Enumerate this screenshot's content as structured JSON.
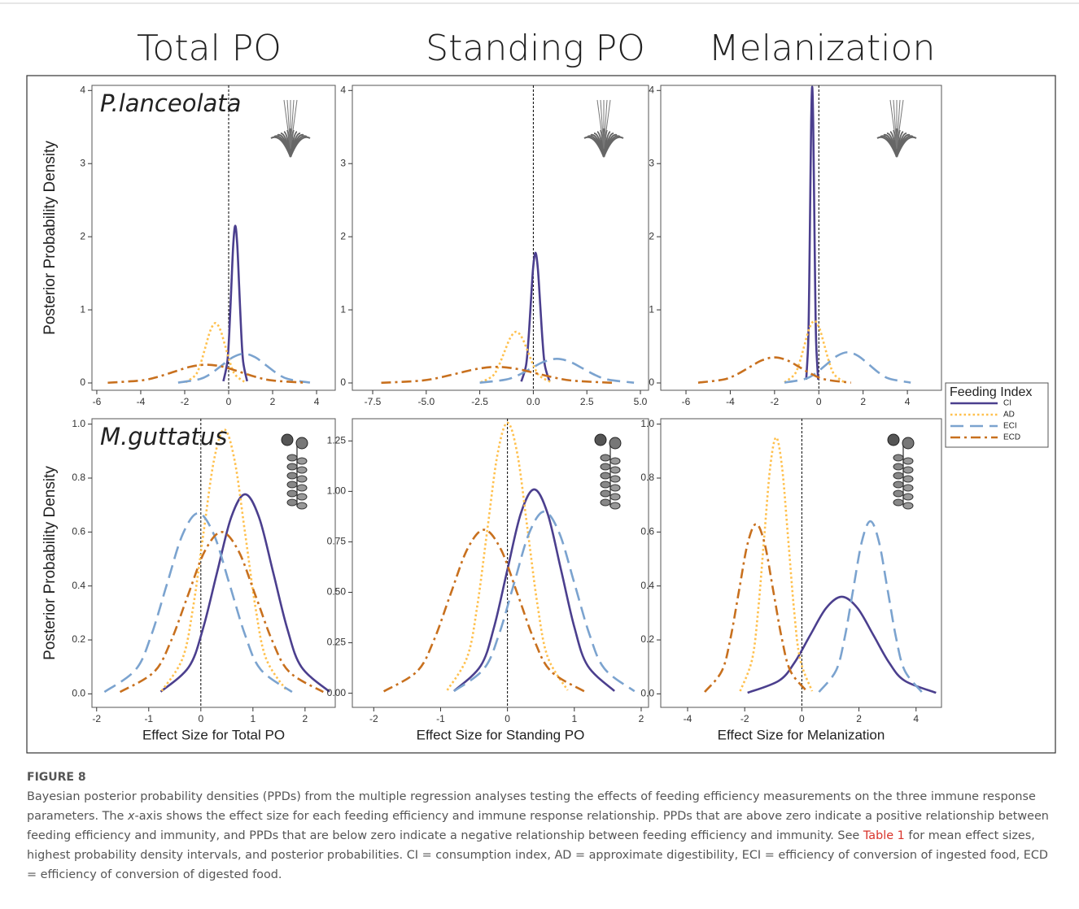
{
  "column_titles": [
    "Total PO",
    "Standing PO",
    "Melanization"
  ],
  "legend": {
    "title": "Feeding Index",
    "entries": [
      {
        "name": "CI",
        "color": "#4b3f8e",
        "style": "solid"
      },
      {
        "name": "AD",
        "color": "#ffc04d",
        "style": "dotted"
      },
      {
        "name": "ECI",
        "color": "#7ba3cf",
        "style": "dashed"
      },
      {
        "name": "ECD",
        "color": "#c8701e",
        "style": "dashdot"
      }
    ]
  },
  "figure_label": "FIGURE 8",
  "caption": {
    "p1": "Bayesian posterior probability densities (PPDs) from the multiple regression analyses testing the effects of feeding efficiency measurements on the three immune response parameters. The ",
    "italic": "x",
    "p2": "-axis shows the effect size for each feeding efficiency and immune response relationship. PPDs that are above zero indicate a positive relationship between feeding efficiency and immunity, and PPDs that are below zero indicate a negative relationship between feeding efficiency and immunity. See ",
    "link": "Table 1",
    "p3": " for mean effect sizes, highest probability density intervals, and posterior probabilities. CI = consumption index, AD = approximate digestibility, ECI = efficiency of conversion of ingested food, ECD = efficiency of conversion of digested food."
  },
  "chart_data": [
    {
      "type": "line",
      "panel_label": "P.lanceolata",
      "ylabel": "Posterior Probability Density",
      "vline": 0,
      "xlim": [
        -6.22,
        4.85
      ],
      "ylim": [
        -0.1,
        4.07
      ],
      "xticks": [
        -6,
        -4,
        -2,
        0,
        2,
        4
      ],
      "yticks": [
        0,
        1,
        2,
        3,
        4
      ],
      "series": [
        {
          "x": [
            -0.24,
            -0.06,
            0.03,
            0.12,
            0.21,
            0.3,
            0.39,
            0.48,
            0.57,
            0.66,
            0.84
          ],
          "values": [
            0.024,
            0.29,
            0.699,
            1.305,
            1.896,
            2.15,
            1.896,
            1.305,
            0.699,
            0.29,
            0.024
          ]
        },
        {
          "x": [
            -1.95,
            -1.5,
            -1.275,
            -1.05,
            -0.825,
            -0.6,
            -0.375,
            -0.15,
            0.075,
            0.3,
            0.75
          ],
          "values": [
            0.009,
            0.111,
            0.267,
            0.498,
            0.723,
            0.82,
            0.723,
            0.498,
            0.267,
            0.111,
            0.009
          ]
        },
        {
          "x": [
            -2.3,
            -1.3,
            -0.8,
            -0.3,
            0.2,
            0.7,
            1.2,
            1.7,
            2.2,
            2.7,
            3.7
          ],
          "values": [
            0.004,
            0.054,
            0.13,
            0.243,
            0.353,
            0.4,
            0.353,
            0.243,
            0.13,
            0.054,
            0.004
          ]
        },
        {
          "x": [
            -5.5,
            -4,
            -3.25,
            -2.5,
            -1.75,
            -1,
            -0.25,
            0.5,
            1.25,
            2,
            3.5
          ],
          "values": [
            0.003,
            0.034,
            0.081,
            0.152,
            0.221,
            0.25,
            0.221,
            0.152,
            0.081,
            0.034,
            0.003
          ]
        }
      ]
    },
    {
      "type": "line",
      "vline": 0,
      "xlim": [
        -8.45,
        5.38
      ],
      "ylim": [
        -0.1,
        4.07
      ],
      "xticks": [
        -7.5,
        {
          "value": -5,
          "label": "-5.0"
        },
        -2.5,
        {
          "value": 0,
          "label": "0.0"
        },
        2.5,
        {
          "value": 5,
          "label": "5.0"
        }
      ],
      "yticks": [
        0,
        1,
        2,
        3,
        4
      ],
      "series": [
        {
          "x": [
            -0.56,
            -0.34,
            -0.23,
            -0.12,
            -0.01,
            0.1,
            0.21,
            0.32,
            0.43,
            0.54,
            0.76
          ],
          "values": [
            0.02,
            0.24,
            0.579,
            1.08,
            1.57,
            1.78,
            1.57,
            1.08,
            0.579,
            0.24,
            0.02
          ]
        },
        {
          "x": [
            -2.45,
            -1.9,
            -1.625,
            -1.35,
            -1.075,
            -0.8,
            -0.525,
            -0.25,
            0.025,
            0.3,
            0.85
          ],
          "values": [
            0.008,
            0.095,
            0.228,
            0.425,
            0.617,
            0.7,
            0.617,
            0.425,
            0.228,
            0.095,
            0.008
          ]
        },
        {
          "x": [
            -2.5,
            -1.3,
            -0.7,
            -0.1,
            0.5,
            1.1,
            1.7,
            2.3,
            2.9,
            3.5,
            4.7
          ],
          "values": [
            0.004,
            0.045,
            0.107,
            0.2,
            0.291,
            0.33,
            0.291,
            0.2,
            0.107,
            0.045,
            0.004
          ]
        },
        {
          "x": [
            -7.1,
            -5.3,
            -4.4,
            -3.5,
            -2.6,
            -1.7,
            -0.8,
            0.1,
            1,
            1.9,
            3.7
          ],
          "values": [
            0.002,
            0.03,
            0.072,
            0.134,
            0.194,
            0.22,
            0.194,
            0.134,
            0.072,
            0.03,
            0.002
          ]
        }
      ]
    },
    {
      "type": "line",
      "vline": 0,
      "xlim": [
        -7.14,
        5.54
      ],
      "ylim": [
        -0.1,
        4.07
      ],
      "xticks": [
        -6,
        -4,
        -2,
        0,
        2,
        4
      ],
      "yticks": [
        0,
        1,
        2,
        3,
        4
      ],
      "series": [
        {
          "x": [
            -0.57,
            -0.48,
            -0.435,
            -0.39,
            -0.345,
            -0.3,
            -0.255,
            -0.21,
            -0.165,
            -0.12,
            -0.03
          ],
          "values": [
            0.045,
            0.547,
            1.316,
            2.458,
            3.572,
            4.05,
            3.572,
            2.458,
            1.316,
            0.547,
            0.045
          ]
        },
        {
          "x": [
            -1.55,
            -1.1,
            -0.875,
            -0.65,
            -0.425,
            -0.2,
            0.025,
            0.25,
            0.475,
            0.7,
            1.15
          ],
          "values": [
            0.009,
            0.115,
            0.276,
            0.516,
            0.75,
            0.85,
            0.75,
            0.516,
            0.276,
            0.115,
            0.009
          ]
        },
        {
          "x": [
            -1.55,
            -0.6,
            -0.125,
            0.35,
            0.825,
            1.3,
            1.775,
            2.25,
            2.725,
            3.2,
            4.15
          ],
          "values": [
            0.005,
            0.057,
            0.137,
            0.255,
            0.37,
            0.42,
            0.37,
            0.255,
            0.137,
            0.057,
            0.005
          ]
        },
        {
          "x": [
            -5.45,
            -4.3,
            -3.725,
            -3.15,
            -2.575,
            -2,
            -1.425,
            -0.85,
            -0.275,
            0.3,
            1.45
          ],
          "values": [
            0.004,
            0.047,
            0.114,
            0.212,
            0.309,
            0.35,
            0.309,
            0.212,
            0.114,
            0.047,
            0.004
          ]
        }
      ]
    },
    {
      "type": "line",
      "panel_label": "M.guttatus",
      "ylabel": "Posterior Probability Density",
      "xlabel": "Effect Size for Total PO",
      "vline": 0,
      "xlim": [
        -2.09,
        2.58
      ],
      "ylim": [
        -0.05,
        1.02
      ],
      "xticks": [
        -2,
        -1,
        0,
        1,
        2
      ],
      "yticks": [
        {
          "value": 0,
          "label": "0.0"
        },
        0.2,
        0.4,
        0.6,
        0.8,
        {
          "value": 1,
          "label": "1.0"
        }
      ],
      "series": [
        {
          "x": [
            -0.77,
            -0.23,
            0.04,
            0.31,
            0.58,
            0.85,
            1.12,
            1.39,
            1.66,
            1.93,
            2.47
          ],
          "values": [
            0.008,
            0.1,
            0.241,
            0.449,
            0.653,
            0.74,
            0.653,
            0.449,
            0.241,
            0.1,
            0.008
          ]
        },
        {
          "x": [
            -0.75,
            -0.35,
            -0.15,
            0.05,
            0.25,
            0.45,
            0.65,
            0.85,
            1.05,
            1.25,
            1.65
          ],
          "values": [
            0.011,
            0.132,
            0.319,
            0.595,
            0.864,
            0.98,
            0.864,
            0.595,
            0.319,
            0.132,
            0.011
          ]
        },
        {
          "x": [
            -1.85,
            -1.25,
            -0.95,
            -0.65,
            -0.35,
            -0.05,
            0.25,
            0.55,
            0.85,
            1.15,
            1.75
          ],
          "values": [
            0.007,
            0.09,
            0.218,
            0.407,
            0.591,
            0.67,
            0.591,
            0.407,
            0.218,
            0.09,
            0.007
          ]
        },
        {
          "x": [
            -1.55,
            -0.9,
            -0.575,
            -0.25,
            0.075,
            0.4,
            0.725,
            1.05,
            1.375,
            1.7,
            2.35
          ],
          "values": [
            0.007,
            0.081,
            0.195,
            0.364,
            0.529,
            0.6,
            0.529,
            0.364,
            0.195,
            0.081,
            0.007
          ]
        }
      ]
    },
    {
      "type": "line",
      "xlabel": "Effect Size for Standing PO",
      "vline": 0,
      "xlim": [
        -2.32,
        2.11
      ],
      "ylim": [
        -0.07,
        1.36
      ],
      "xticks": [
        -2,
        -1,
        0,
        1,
        2
      ],
      "yticks": [
        {
          "value": 0,
          "label": "0.00"
        },
        0.25,
        {
          "value": 0.5,
          "label": "0.50"
        },
        0.75,
        {
          "value": 1,
          "label": "1.00"
        },
        1.25
      ],
      "series": [
        {
          "x": [
            -0.8,
            -0.4,
            -0.2,
            0,
            0.2,
            0.4,
            0.6,
            0.8,
            1,
            1.2,
            1.6
          ],
          "values": [
            0.011,
            0.136,
            0.328,
            0.613,
            0.891,
            1.01,
            0.891,
            0.613,
            0.328,
            0.136,
            0.011
          ]
        },
        {
          "x": [
            -0.9,
            -0.6,
            -0.45,
            -0.3,
            -0.15,
            0,
            0.15,
            0.3,
            0.45,
            0.6,
            0.9
          ],
          "values": [
            0.015,
            0.181,
            0.436,
            0.813,
            1.182,
            1.34,
            1.182,
            0.813,
            0.436,
            0.181,
            0.015
          ]
        },
        {
          "x": [
            -0.8,
            -0.35,
            -0.125,
            0.1,
            0.325,
            0.55,
            0.775,
            1,
            1.225,
            1.45,
            1.9
          ],
          "values": [
            0.01,
            0.122,
            0.293,
            0.546,
            0.794,
            0.9,
            0.794,
            0.546,
            0.293,
            0.122,
            0.01
          ]
        },
        {
          "x": [
            -1.85,
            -1.35,
            -1.1,
            -0.85,
            -0.6,
            -0.35,
            -0.1,
            0.15,
            0.4,
            0.65,
            1.15
          ],
          "values": [
            0.009,
            0.109,
            0.263,
            0.492,
            0.714,
            0.81,
            0.714,
            0.492,
            0.263,
            0.109,
            0.009
          ]
        }
      ]
    },
    {
      "type": "line",
      "xlabel": "Effect Size for Melanization",
      "vline": 0,
      "xlim": [
        -4.94,
        4.89
      ],
      "ylim": [
        -0.05,
        1.02
      ],
      "xticks": [
        -4,
        -2,
        0,
        2,
        4
      ],
      "yticks": [
        {
          "value": 0,
          "label": "0.0"
        },
        0.2,
        0.4,
        0.6,
        0.8,
        {
          "value": 1,
          "label": "1.0"
        }
      ],
      "series": [
        {
          "x": [
            -1.9,
            -0.8,
            -0.25,
            0.3,
            0.85,
            1.4,
            1.95,
            2.5,
            3.05,
            3.6,
            4.7
          ],
          "values": [
            0.004,
            0.049,
            0.117,
            0.219,
            0.318,
            0.36,
            0.318,
            0.219,
            0.117,
            0.049,
            0.004
          ]
        },
        {
          "x": [
            -2.16,
            -1.74,
            -1.53,
            -1.32,
            -1.11,
            -0.9,
            -0.69,
            -0.48,
            -0.27,
            -0.06,
            0.36
          ],
          "values": [
            0.01,
            0.128,
            0.309,
            0.577,
            0.838,
            0.95,
            0.838,
            0.577,
            0.309,
            0.128,
            0.01
          ]
        },
        {
          "x": [
            0.6,
            1.2,
            1.5,
            1.8,
            2.1,
            2.4,
            2.7,
            3,
            3.3,
            3.6,
            4.2
          ],
          "values": [
            0.007,
            0.087,
            0.208,
            0.388,
            0.564,
            0.64,
            0.564,
            0.388,
            0.208,
            0.087,
            0.007
          ]
        },
        {
          "x": [
            -3.4,
            -2.8,
            -2.5,
            -2.2,
            -1.9,
            -1.6,
            -1.3,
            -1,
            -0.7,
            -0.4,
            0.2
          ],
          "values": [
            0.007,
            0.085,
            0.205,
            0.382,
            0.556,
            0.63,
            0.556,
            0.382,
            0.205,
            0.085,
            0.007
          ]
        }
      ]
    }
  ]
}
